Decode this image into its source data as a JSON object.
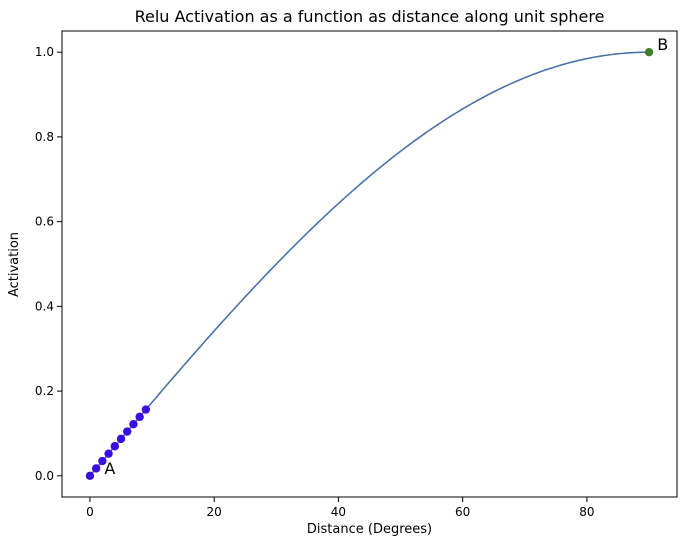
{
  "chart_data": {
    "type": "line",
    "title": "Relu Activation as a function as distance along unit sphere",
    "xlabel": "Distance (Degrees)",
    "ylabel": "Activation",
    "xlim": [
      -4.5,
      94.5
    ],
    "ylim": [
      -0.05,
      1.05
    ],
    "xticks": [
      0,
      20,
      40,
      60,
      80
    ],
    "yticks": [
      0.0,
      0.2,
      0.4,
      0.6,
      0.8,
      1.0
    ],
    "xtick_labels": [
      "0",
      "20",
      "40",
      "60",
      "80"
    ],
    "ytick_labels": [
      "0.0",
      "0.2",
      "0.4",
      "0.6",
      "0.8",
      "1.0"
    ],
    "grid": false,
    "line": {
      "function": "sin(x in degrees)",
      "x_range": [
        0,
        90
      ],
      "color": "#4c72a7"
    },
    "start_points": {
      "color": "#3a0ee0",
      "x": [
        0,
        1,
        2,
        3,
        4,
        5,
        6,
        7,
        8,
        9
      ],
      "y": [
        0.0,
        0.0175,
        0.0349,
        0.0523,
        0.0698,
        0.0872,
        0.1045,
        0.1219,
        0.1392,
        0.1564
      ]
    },
    "end_point": {
      "color": "#3f7f2a",
      "x": 90,
      "y": 1.0
    },
    "annotations": [
      {
        "text": "A",
        "x": 2,
        "y": 0.0
      },
      {
        "text": "B",
        "x": 91,
        "y": 1.0
      }
    ]
  }
}
